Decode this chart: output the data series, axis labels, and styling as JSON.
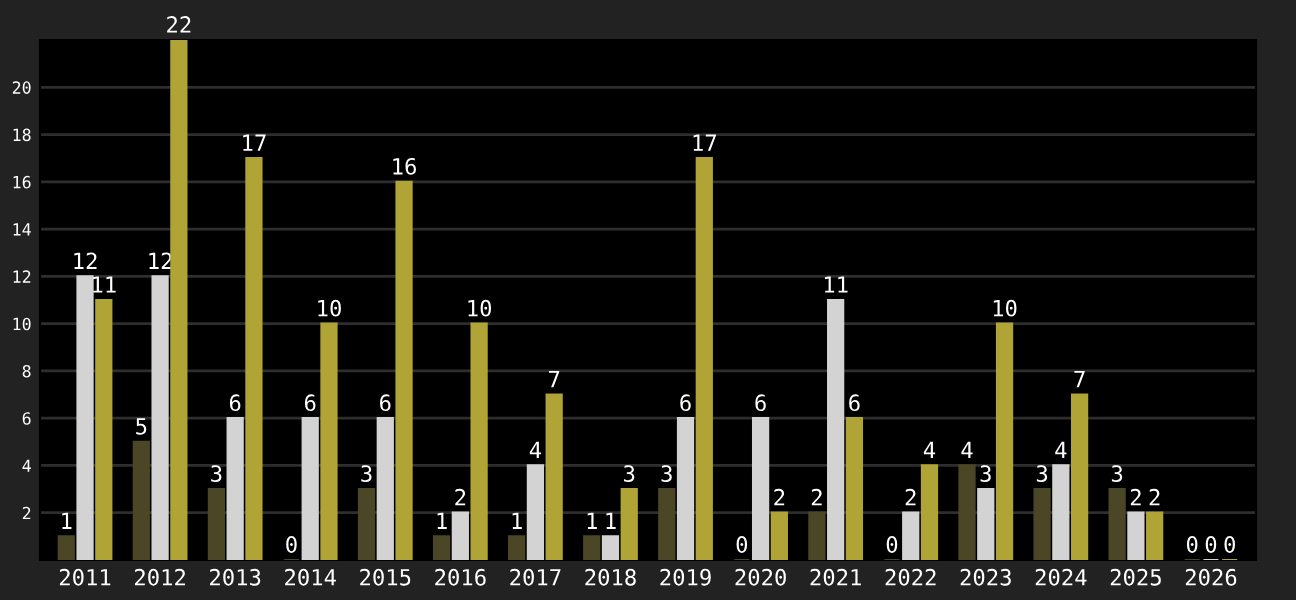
{
  "chart_data": {
    "type": "bar",
    "categories": [
      "2011",
      "2012",
      "2013",
      "2014",
      "2015",
      "2016",
      "2017",
      "2018",
      "2019",
      "2020",
      "2021",
      "2022",
      "2023",
      "2024",
      "2025",
      "2026"
    ],
    "series": [
      {
        "color": "#4a4626",
        "values": [
          1,
          5,
          3,
          0,
          3,
          1,
          1,
          1,
          3,
          0,
          2,
          0,
          4,
          3,
          3,
          0
        ]
      },
      {
        "color": "#d3d3d3",
        "values": [
          12,
          12,
          6,
          6,
          6,
          2,
          4,
          1,
          6,
          6,
          11,
          2,
          3,
          4,
          2,
          0
        ]
      },
      {
        "color": "#afa435",
        "values": [
          11,
          22,
          17,
          10,
          16,
          10,
          7,
          3,
          17,
          2,
          6,
          4,
          10,
          7,
          2,
          0
        ]
      }
    ],
    "ylim": [
      0,
      22
    ],
    "yticks": [
      2,
      4,
      6,
      8,
      10,
      12,
      14,
      16,
      18,
      20
    ],
    "grid": "y",
    "data_labels": true,
    "legend": false
  }
}
